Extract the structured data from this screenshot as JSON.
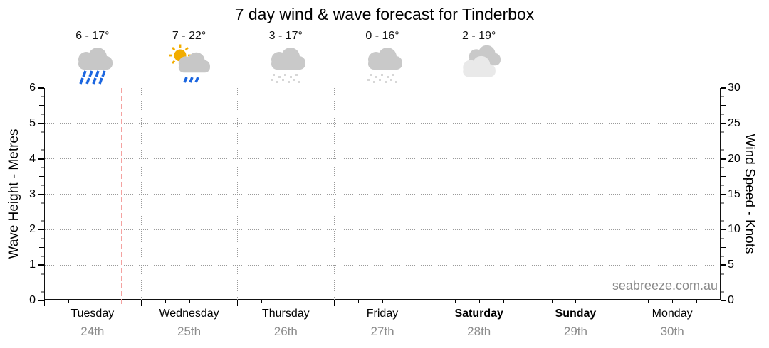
{
  "title": "7 day wind & wave forecast for Tinderbox",
  "watermark": "seabreeze.com.au",
  "forecast_days": [
    {
      "name": "Tuesday",
      "date": "24th",
      "weekend": false,
      "temp": "6 - 17°",
      "icon": "rain"
    },
    {
      "name": "Wednesday",
      "date": "25th",
      "weekend": false,
      "temp": "7 - 22°",
      "icon": "sun-shower"
    },
    {
      "name": "Thursday",
      "date": "26th",
      "weekend": false,
      "temp": "3 - 17°",
      "icon": "snow-flurries"
    },
    {
      "name": "Friday",
      "date": "27th",
      "weekend": false,
      "temp": "0 - 16°",
      "icon": "snow-flurries"
    },
    {
      "name": "Saturday",
      "date": "28th",
      "weekend": true,
      "temp": "2 - 19°",
      "icon": "cloudy"
    },
    {
      "name": "Sunday",
      "date": "29th",
      "weekend": true,
      "temp": null,
      "icon": null
    },
    {
      "name": "Monday",
      "date": "30th",
      "weekend": false,
      "temp": null,
      "icon": null
    }
  ],
  "chart_data": {
    "type": "line",
    "series": [],
    "title": "7 day wind & wave forecast for Tinderbox",
    "left_axis": {
      "label": "Wave Height - Metres",
      "min": 0,
      "max": 6,
      "tick_labels": [
        0,
        1,
        2,
        3,
        4,
        5,
        6
      ],
      "minor_step": 0.25
    },
    "right_axis": {
      "label": "Wind Speed - Knots",
      "min": 0,
      "max": 30,
      "tick_labels": [
        0,
        5,
        10,
        15,
        20,
        25,
        30
      ],
      "minor_step": 1.25
    },
    "x_axis": {
      "categories": [
        "Tuesday",
        "Wednesday",
        "Thursday",
        "Friday",
        "Saturday",
        "Sunday",
        "Monday"
      ],
      "sub_labels": [
        "24th",
        "25th",
        "26th",
        "27th",
        "28th",
        "29th",
        "30th"
      ],
      "minor_ticks_per_day": 4,
      "gridlines": "day-boundaries"
    },
    "grid": true,
    "now_marker": {
      "x_fraction": 0.1137,
      "color": "#f4a2a0"
    }
  },
  "colors": {
    "cloud": "#c7c7c7",
    "cloud_light": "#e9e9e9",
    "rain_blue": "#1b66e0",
    "sun_yellow": "#f2ad00",
    "flurry_dot": "#d7d7d7",
    "grid_gray": "#9a9a9a",
    "now_line": "#f4a2a0",
    "date_gray": "#8c8c8c"
  }
}
